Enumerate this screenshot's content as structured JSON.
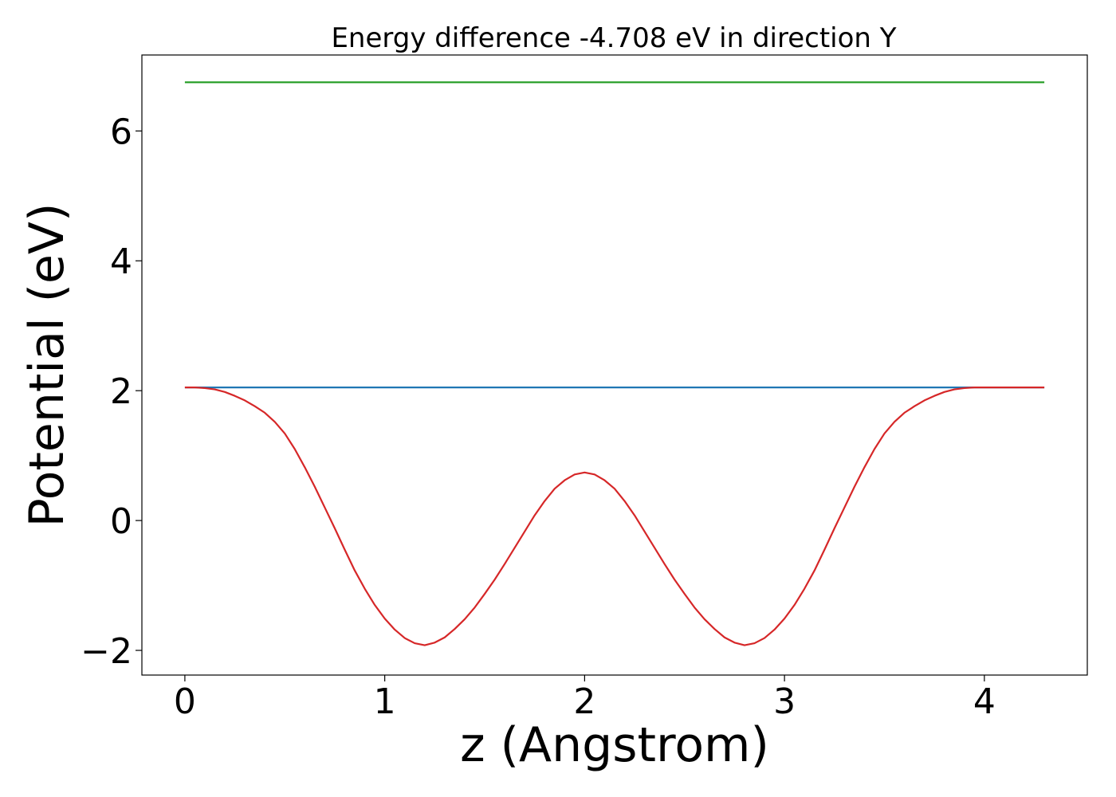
{
  "chart_data": {
    "type": "line",
    "title": "Energy difference -4.708 eV in direction Y",
    "xlabel": "z (Angstrom)",
    "ylabel": "Potential (eV)",
    "xlim": [
      -0.215,
      4.515
    ],
    "ylim": [
      -2.38,
      7.17
    ],
    "xticks": [
      0,
      1,
      2,
      3,
      4
    ],
    "yticks": [
      -2,
      0,
      2,
      4,
      6
    ],
    "xtick_labels": [
      "0",
      "1",
      "2",
      "3",
      "4"
    ],
    "ytick_labels": [
      "−2",
      "0",
      "2",
      "4",
      "6"
    ],
    "grid": false,
    "legend": "none",
    "series": [
      {
        "color": "#2ca02c",
        "x": [
          0,
          4.3
        ],
        "y": [
          6.75,
          6.75
        ]
      },
      {
        "color": "#1f77b4",
        "x": [
          0,
          4.3
        ],
        "y": [
          2.05,
          2.05
        ]
      },
      {
        "color": "#d62728",
        "x": [
          0.0,
          0.05,
          0.1,
          0.15,
          0.2,
          0.25,
          0.3,
          0.35,
          0.4,
          0.45,
          0.5,
          0.55,
          0.6,
          0.65,
          0.7,
          0.75,
          0.8,
          0.85,
          0.9,
          0.95,
          1.0,
          1.05,
          1.1,
          1.15,
          1.2,
          1.25,
          1.3,
          1.35,
          1.4,
          1.45,
          1.5,
          1.55,
          1.6,
          1.65,
          1.7,
          1.75,
          1.8,
          1.85,
          1.9,
          1.95,
          2.0,
          2.05,
          2.1,
          2.15,
          2.2,
          2.25,
          2.3,
          2.35,
          2.4,
          2.45,
          2.5,
          2.55,
          2.6,
          2.65,
          2.7,
          2.75,
          2.8,
          2.85,
          2.9,
          2.95,
          3.0,
          3.05,
          3.1,
          3.15,
          3.2,
          3.25,
          3.3,
          3.35,
          3.4,
          3.45,
          3.5,
          3.55,
          3.6,
          3.65,
          3.7,
          3.75,
          3.8,
          3.85,
          3.9,
          3.95,
          4.0,
          4.05,
          4.1,
          4.15,
          4.2,
          4.25,
          4.3
        ],
        "y": [
          2.05,
          2.05,
          2.04,
          2.02,
          1.98,
          1.92,
          1.85,
          1.76,
          1.66,
          1.52,
          1.34,
          1.1,
          0.82,
          0.52,
          0.2,
          -0.12,
          -0.45,
          -0.77,
          -1.05,
          -1.3,
          -1.51,
          -1.68,
          -1.81,
          -1.89,
          -1.92,
          -1.88,
          -1.8,
          -1.67,
          -1.52,
          -1.34,
          -1.13,
          -0.91,
          -0.67,
          -0.42,
          -0.17,
          0.08,
          0.3,
          0.49,
          0.62,
          0.71,
          0.74,
          0.71,
          0.62,
          0.49,
          0.3,
          0.08,
          -0.17,
          -0.42,
          -0.67,
          -0.91,
          -1.13,
          -1.34,
          -1.52,
          -1.67,
          -1.8,
          -1.88,
          -1.92,
          -1.89,
          -1.81,
          -1.68,
          -1.51,
          -1.3,
          -1.05,
          -0.77,
          -0.45,
          -0.12,
          0.2,
          0.52,
          0.82,
          1.1,
          1.34,
          1.52,
          1.66,
          1.76,
          1.85,
          1.92,
          1.98,
          2.02,
          2.04,
          2.05,
          2.05,
          2.05,
          2.05,
          2.05,
          2.05,
          2.05,
          2.05
        ]
      }
    ]
  }
}
